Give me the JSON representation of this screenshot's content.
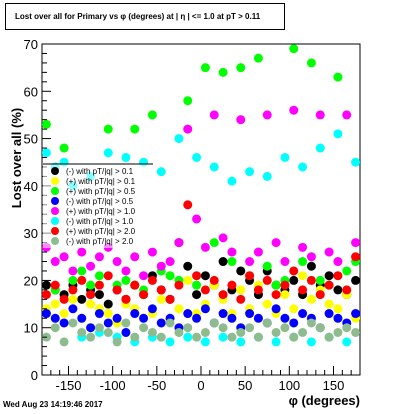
{
  "chart_data": {
    "type": "scatter",
    "title": "Lost over all for Primary vs φ (degrees) at | η | <= 1.0 at pT > 0.11",
    "xlabel": "φ (degrees)",
    "ylabel": "Lost over all (%)",
    "xlim": [
      -180,
      180
    ],
    "ylim": [
      0,
      70
    ],
    "x_ticks": [
      -150,
      -100,
      -50,
      0,
      50,
      100,
      150
    ],
    "y_ticks": [
      0,
      10,
      20,
      30,
      40,
      50,
      60,
      70
    ],
    "grid": false,
    "legend_position": "middle-left",
    "series": [
      {
        "name": "(-) with pT/|q| > 0.1",
        "color": "#000000",
        "x": [
          -175,
          -165,
          -155,
          -145,
          -135,
          -125,
          -115,
          -105,
          -95,
          -85,
          -75,
          -65,
          -55,
          -45,
          -35,
          -25,
          -15,
          -5,
          5,
          15,
          25,
          35,
          45,
          55,
          65,
          75,
          85,
          95,
          105,
          115,
          125,
          135,
          145,
          155,
          165,
          175
        ],
        "y": [
          19,
          18,
          17,
          19,
          16,
          18,
          17,
          15,
          18,
          16,
          19,
          17,
          21,
          18,
          16,
          28,
          23,
          17,
          21,
          19,
          24,
          18,
          22,
          20,
          17,
          22,
          19,
          18,
          20,
          17,
          23,
          19,
          21,
          18,
          17,
          20
        ]
      },
      {
        "name": "(+) with pT/|q| > 0.1",
        "color": "#ffff00",
        "x": [
          -175,
          -165,
          -155,
          -145,
          -135,
          -125,
          -115,
          -105,
          -95,
          -85,
          -75,
          -65,
          -55,
          -45,
          -35,
          -25,
          -15,
          -5,
          5,
          15,
          25,
          35,
          45,
          55,
          65,
          75,
          85,
          95,
          105,
          115,
          125,
          135,
          145,
          155,
          165,
          175
        ],
        "y": [
          14,
          15,
          13,
          16,
          12,
          15,
          14,
          13,
          11,
          15,
          14,
          17,
          13,
          16,
          21,
          14,
          20,
          13,
          15,
          19,
          16,
          13,
          18,
          14,
          19,
          15,
          13,
          17,
          14,
          21,
          16,
          18,
          15,
          14,
          17,
          12
        ]
      },
      {
        "name": "(+) with pT/|q| > 0.5",
        "color": "#00ff00",
        "x": [
          -175,
          -165,
          -155,
          -145,
          -135,
          -125,
          -115,
          -105,
          -95,
          -85,
          -75,
          -65,
          -55,
          -45,
          -35,
          -25,
          -15,
          -5,
          5,
          15,
          25,
          35,
          45,
          55,
          65,
          75,
          85,
          95,
          105,
          115,
          125,
          135,
          145,
          155,
          165,
          175
        ],
        "y": [
          53,
          18,
          48,
          20,
          22,
          19,
          21,
          52,
          19,
          20,
          52,
          18,
          55,
          22,
          21,
          20,
          58,
          19,
          65,
          28,
          64,
          24,
          65,
          21,
          67,
          23,
          19,
          20,
          69,
          24,
          66,
          20,
          19,
          63,
          22,
          24
        ]
      },
      {
        "name": "(-) with pT/|q| > 0.5",
        "color": "#0000ff",
        "x": [
          -175,
          -165,
          -155,
          -145,
          -135,
          -125,
          -115,
          -105,
          -95,
          -85,
          -75,
          -65,
          -55,
          -45,
          -35,
          -25,
          -15,
          -5,
          5,
          15,
          25,
          35,
          45,
          55,
          65,
          75,
          85,
          95,
          105,
          115,
          125,
          135,
          145,
          155,
          165,
          175
        ],
        "y": [
          13,
          12,
          11,
          14,
          12,
          10,
          13,
          11,
          12,
          9,
          13,
          12,
          14,
          11,
          12,
          10,
          13,
          12,
          14,
          11,
          13,
          12,
          10,
          13,
          12,
          11,
          14,
          12,
          11,
          13,
          12,
          10,
          13,
          12,
          11,
          13
        ]
      },
      {
        "name": "(+) with pT/|q| > 1.0",
        "color": "#ff00ff",
        "x": [
          -175,
          -165,
          -155,
          -145,
          -135,
          -125,
          -115,
          -105,
          -95,
          -85,
          -75,
          -65,
          -55,
          -45,
          -35,
          -25,
          -15,
          -5,
          5,
          15,
          25,
          35,
          45,
          55,
          65,
          75,
          85,
          95,
          105,
          115,
          125,
          135,
          145,
          155,
          165,
          175
        ],
        "y": [
          27,
          24,
          25,
          22,
          26,
          23,
          25,
          27,
          24,
          22,
          25,
          21,
          26,
          23,
          24,
          28,
          52,
          33,
          27,
          55,
          29,
          26,
          54,
          24,
          26,
          55,
          28,
          24,
          56,
          27,
          25,
          55,
          26,
          24,
          55,
          28
        ]
      },
      {
        "name": "(-) with pT/|q| > 1.0",
        "color": "#00ffff",
        "x": [
          -175,
          -165,
          -155,
          -145,
          -135,
          -125,
          -115,
          -105,
          -95,
          -85,
          -75,
          -65,
          -55,
          -45,
          -35,
          -25,
          -15,
          -5,
          5,
          15,
          25,
          35,
          45,
          55,
          65,
          75,
          85,
          95,
          105,
          115,
          125,
          135,
          145,
          155,
          165,
          175
        ],
        "y": [
          47,
          44,
          45,
          40,
          8,
          42,
          9,
          47,
          8,
          46,
          7,
          45,
          8,
          43,
          7,
          50,
          8,
          46,
          7,
          44,
          8,
          41,
          7,
          43,
          8,
          42,
          7,
          46,
          8,
          44,
          7,
          48,
          8,
          51,
          7,
          45
        ]
      },
      {
        "name": "(+) with pT/|q| > 2.0",
        "color": "#ff0000",
        "x": [
          -175,
          -165,
          -155,
          -145,
          -135,
          -125,
          -115,
          -105,
          -95,
          -85,
          -75,
          -65,
          -55,
          -45,
          -35,
          -25,
          -15,
          -5,
          5,
          15,
          25,
          35,
          45,
          55,
          65,
          75,
          85,
          95,
          105,
          115,
          125,
          135,
          145,
          155,
          165,
          175
        ],
        "y": [
          17,
          19,
          16,
          18,
          20,
          17,
          19,
          21,
          18,
          16,
          19,
          17,
          20,
          18,
          16,
          19,
          36,
          21,
          18,
          20,
          17,
          19,
          16,
          21,
          18,
          20,
          17,
          19,
          22,
          18,
          20,
          17,
          19,
          21,
          18,
          25
        ]
      },
      {
        "name": "(-) with pT/|q| > 2.0",
        "color": "#8fbc8f",
        "x": [
          -175,
          -165,
          -155,
          -145,
          -135,
          -125,
          -115,
          -105,
          -95,
          -85,
          -75,
          -65,
          -55,
          -45,
          -35,
          -25,
          -15,
          -5,
          5,
          15,
          25,
          35,
          45,
          55,
          65,
          75,
          85,
          95,
          105,
          115,
          125,
          135,
          145,
          155,
          165,
          175
        ],
        "y": [
          8,
          10,
          7,
          11,
          9,
          8,
          10,
          9,
          7,
          11,
          8,
          10,
          9,
          8,
          11,
          9,
          10,
          8,
          9,
          11,
          10,
          8,
          9,
          10,
          8,
          11,
          9,
          10,
          8,
          9,
          11,
          10,
          8,
          9,
          10,
          9
        ]
      }
    ]
  },
  "footer": {
    "timestamp": "Wed Aug 23 14:19:46 2017"
  }
}
